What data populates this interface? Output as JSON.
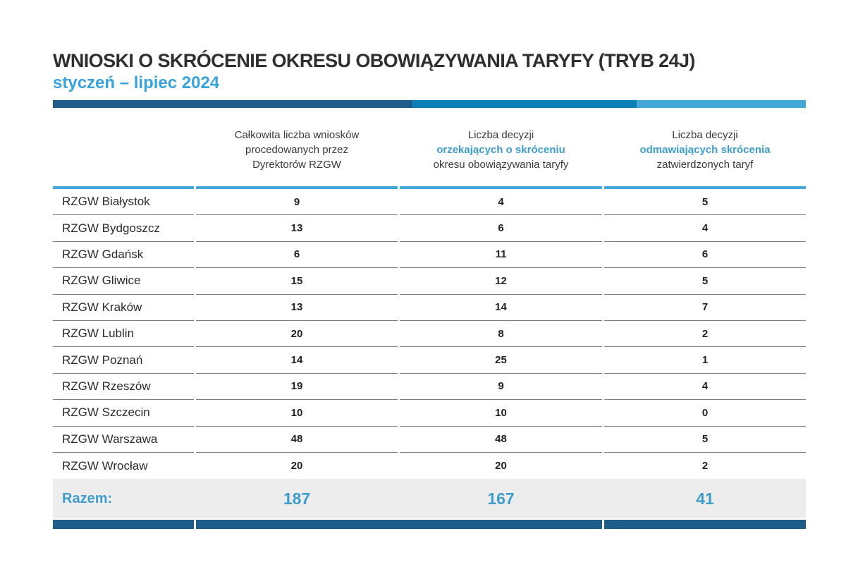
{
  "headers": {
    "col1": "",
    "col2": {
      "line1": "Całkowita liczba wniosków",
      "line2": "procedowanych przez",
      "line3": "Dyrektorów RZGW"
    },
    "col3": {
      "line1": "Liczba decyzji",
      "line2": "orzekających o skróceniu",
      "line3": "okresu obowiązywania taryfy"
    },
    "col4": {
      "line1": "Liczba decyzji",
      "line2": "odmawiających skrócenia",
      "line3": "zatwierdzonych taryf"
    }
  },
  "colors": {
    "dark_blue": "#1e5c8a",
    "medium_blue": "#0c80b6",
    "light_blue": "#44a9d6",
    "accent_text_blue": "#3e9dcb",
    "subtitle_blue": "#37a3da",
    "total_row_background": "#ededee",
    "row_separator": "#7e7e7e"
  },
  "chart_data": {
    "type": "table",
    "title": "WNIOSKI O SKRÓCENIE OKRESU OBOWIĄZYWANIA TARYFY (TRYB 24J)",
    "subtitle": "styczeń – lipiec 2024",
    "columns": [
      "RZGW",
      "Całkowita liczba wniosków procedowanych przez Dyrektorów RZGW",
      "Liczba decyzji orzekających o skróceniu okresu obowiązywania taryfy",
      "Liczba decyzji odmawiających skrócenia zatwierdzonych taryf"
    ],
    "rows": [
      {
        "name": "RZGW Białystok",
        "total": 9,
        "granted": 4,
        "refused": 5
      },
      {
        "name": "RZGW Bydgoszcz",
        "total": 13,
        "granted": 6,
        "refused": 4
      },
      {
        "name": "RZGW Gdańsk",
        "total": 6,
        "granted": 11,
        "refused": 6
      },
      {
        "name": "RZGW Gliwice",
        "total": 15,
        "granted": 12,
        "refused": 5
      },
      {
        "name": "RZGW Kraków",
        "total": 13,
        "granted": 14,
        "refused": 7
      },
      {
        "name": "RZGW Lublin",
        "total": 20,
        "granted": 8,
        "refused": 2
      },
      {
        "name": "RZGW Poznań",
        "total": 14,
        "granted": 25,
        "refused": 1
      },
      {
        "name": "RZGW Rzeszów",
        "total": 19,
        "granted": 9,
        "refused": 4
      },
      {
        "name": "RZGW Szczecin",
        "total": 10,
        "granted": 10,
        "refused": 0
      },
      {
        "name": "RZGW Warszawa",
        "total": 48,
        "granted": 48,
        "refused": 5
      },
      {
        "name": "RZGW Wrocław",
        "total": 20,
        "granted": 20,
        "refused": 2
      }
    ],
    "total_row": {
      "label": "Razem:",
      "total": 187,
      "granted": 167,
      "refused": 41
    }
  }
}
